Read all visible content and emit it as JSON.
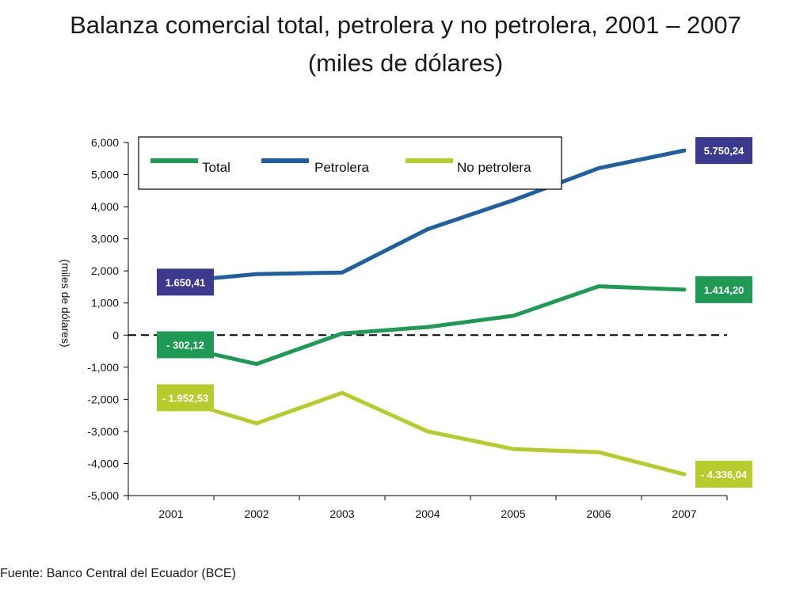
{
  "page": {
    "source": "Fuente: Banco Central del Ecuador (BCE)"
  },
  "chart_data": {
    "type": "line",
    "title": "Balanza comercial total, petrolera y no petrolera, 2001 – 2007",
    "subtitle": "(miles de dólares)",
    "ylabel": "(miles de dólares)",
    "xlabel": "",
    "x": [
      "2001",
      "2002",
      "2003",
      "2004",
      "2005",
      "2006",
      "2007"
    ],
    "ylim": [
      -5000,
      6000
    ],
    "yticks": [
      6000,
      5000,
      4000,
      3000,
      2000,
      1000,
      0,
      -1000,
      -2000,
      -3000,
      -4000,
      -5000
    ],
    "ytick_labels": [
      "6,000",
      "5,000",
      "4,000",
      "3,000",
      "2,000",
      "1,000",
      "0",
      "-1,000",
      "-2,000",
      "-3,000",
      "-4,000",
      "-5,000"
    ],
    "zero_line": "dashed",
    "legend_position": "top-left",
    "series": [
      {
        "name": "Total",
        "color": "#1e9a55",
        "values": [
          -302.12,
          -900,
          50,
          250,
          600,
          1520,
          1414.2
        ],
        "labels": [
          {
            "index": 0,
            "text": "- 302,12",
            "side": "left"
          },
          {
            "index": 6,
            "text": "1.414,20",
            "side": "right"
          }
        ]
      },
      {
        "name": "Petrolera",
        "color": "#1f5fa0",
        "values": [
          1650.41,
          1900,
          1950,
          3300,
          4200,
          5200,
          5750.24
        ],
        "labels": [
          {
            "index": 0,
            "text": "1.650,41",
            "side": "left",
            "box_color": "#3b3a8f"
          },
          {
            "index": 6,
            "text": "5.750,24",
            "side": "right",
            "box_color": "#3b3a8f"
          }
        ]
      },
      {
        "name": "No petrolera",
        "color": "#b5cc2c",
        "values": [
          -1952.53,
          -2750,
          -1800,
          -3000,
          -3550,
          -3650,
          -4336.04
        ],
        "labels": [
          {
            "index": 0,
            "text": "- 1.952,53",
            "side": "left"
          },
          {
            "index": 6,
            "text": "- 4.336,04",
            "side": "right"
          }
        ]
      }
    ]
  }
}
